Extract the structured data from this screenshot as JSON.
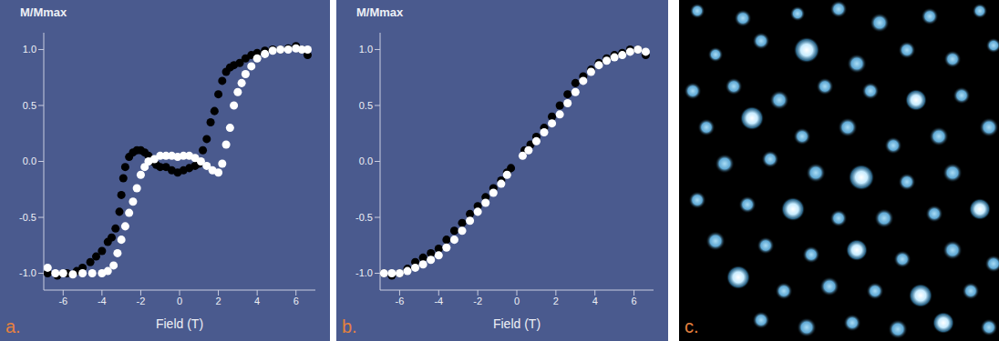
{
  "chart_data": [
    {
      "type": "scatter",
      "x_label": "Field (T)",
      "y_label": "M/Mmax",
      "annotations": [
        "a."
      ],
      "grid": false,
      "xlim": [
        -7,
        7
      ],
      "ylim": [
        -1.15,
        1.15
      ],
      "xticks": [
        -6,
        -4,
        -2,
        0,
        2,
        4,
        6
      ],
      "yticks": [
        {
          "value": -1,
          "label": "-1.0"
        },
        {
          "value": -0.5,
          "label": "-0.5"
        },
        {
          "value": 0,
          "label": "0.0"
        },
        {
          "value": 0.5,
          "label": "0.5"
        },
        {
          "value": 1,
          "label": "1.0"
        }
      ],
      "series": [
        {
          "color": "#000000",
          "x": [
            -6.8,
            -6.3,
            -5.8,
            -5.3,
            -5.0,
            -4.6,
            -4.3,
            -4.0,
            -3.7,
            -3.5,
            -3.3,
            -3.1,
            -3.0,
            -2.9,
            -2.8,
            -2.6,
            -2.4,
            -2.2,
            -2.0,
            -1.8,
            -1.6,
            -1.4,
            -1.2,
            -1.0,
            -0.7,
            -0.4,
            -0.1,
            0.2,
            0.5,
            0.8,
            1.0,
            1.2,
            1.4,
            1.6,
            1.8,
            2.0,
            2.2,
            2.4,
            2.6,
            2.8,
            3.1,
            3.4,
            3.7,
            4.0,
            4.4,
            4.8,
            5.2,
            5.6,
            6.0,
            6.3,
            6.6
          ],
          "values": [
            -1.0,
            -1.02,
            -1.0,
            -0.98,
            -0.95,
            -0.9,
            -0.85,
            -0.8,
            -0.72,
            -0.68,
            -0.6,
            -0.45,
            -0.3,
            -0.15,
            -0.05,
            0.04,
            0.08,
            0.1,
            0.1,
            0.08,
            0.05,
            0.0,
            -0.03,
            -0.05,
            -0.05,
            -0.08,
            -0.1,
            -0.08,
            -0.06,
            -0.04,
            -0.02,
            0.1,
            0.2,
            0.35,
            0.45,
            0.6,
            0.72,
            0.8,
            0.84,
            0.86,
            0.88,
            0.92,
            0.95,
            0.97,
            0.99,
            1.0,
            1.0,
            1.01,
            1.03,
            1.0,
            0.95
          ]
        },
        {
          "color": "#ffffff",
          "x": [
            -6.8,
            -6.4,
            -6.0,
            -5.5,
            -5.0,
            -4.5,
            -4.0,
            -3.7,
            -3.4,
            -3.2,
            -3.0,
            -2.8,
            -2.6,
            -2.4,
            -2.2,
            -2.0,
            -1.8,
            -1.6,
            -1.3,
            -1.0,
            -0.7,
            -0.4,
            -0.1,
            0.2,
            0.5,
            0.8,
            1.1,
            1.4,
            1.7,
            2.0,
            2.2,
            2.4,
            2.6,
            2.8,
            3.0,
            3.2,
            3.4,
            3.7,
            4.0,
            4.4,
            4.8,
            5.2,
            5.6,
            6.0,
            6.3,
            6.6
          ],
          "values": [
            -0.95,
            -1.0,
            -1.0,
            -1.01,
            -1.0,
            -1.0,
            -1.0,
            -0.98,
            -0.93,
            -0.82,
            -0.7,
            -0.58,
            -0.46,
            -0.36,
            -0.24,
            -0.12,
            -0.05,
            0.0,
            0.02,
            0.05,
            0.05,
            0.05,
            0.04,
            0.05,
            0.05,
            0.03,
            0.0,
            -0.04,
            -0.08,
            -0.1,
            -0.02,
            0.15,
            0.3,
            0.5,
            0.62,
            0.7,
            0.78,
            0.85,
            0.92,
            0.96,
            0.99,
            1.0,
            1.0,
            1.01,
            1.0,
            1.0
          ]
        }
      ]
    },
    {
      "type": "scatter",
      "x_label": "Field (T)",
      "y_label": "M/Mmax",
      "annotations": [
        "b."
      ],
      "grid": false,
      "xlim": [
        -7,
        7
      ],
      "ylim": [
        -1.15,
        1.15
      ],
      "xticks": [
        -6,
        -4,
        -2,
        0,
        2,
        4,
        6
      ],
      "yticks": [
        {
          "value": -1,
          "label": "-1.0"
        },
        {
          "value": -0.5,
          "label": "-0.5"
        },
        {
          "value": 0,
          "label": "0.0"
        },
        {
          "value": 0.5,
          "label": "0.5"
        },
        {
          "value": 1,
          "label": "1.0"
        }
      ],
      "series": [
        {
          "color": "#000000",
          "x": [
            -6.8,
            -6.4,
            -6.0,
            -5.6,
            -5.2,
            -4.8,
            -4.4,
            -4.0,
            -3.6,
            -3.2,
            -2.8,
            -2.4,
            -2.0,
            -1.6,
            -1.2,
            -0.8,
            -0.5,
            -0.3,
            0.4,
            0.7,
            1.0,
            1.4,
            1.8,
            2.2,
            2.6,
            3.0,
            3.4,
            3.8,
            4.2,
            4.6,
            5.0,
            5.4,
            5.8,
            6.2,
            6.6
          ],
          "values": [
            -1.0,
            -1.02,
            -1.0,
            -0.96,
            -0.9,
            -0.86,
            -0.82,
            -0.78,
            -0.7,
            -0.62,
            -0.55,
            -0.47,
            -0.4,
            -0.32,
            -0.24,
            -0.17,
            -0.1,
            -0.06,
            0.1,
            0.15,
            0.22,
            0.3,
            0.4,
            0.5,
            0.6,
            0.7,
            0.76,
            0.82,
            0.88,
            0.92,
            0.95,
            0.97,
            1.0,
            1.0,
            0.95
          ]
        },
        {
          "color": "#ffffff",
          "x": [
            -6.8,
            -6.4,
            -6.0,
            -5.6,
            -5.2,
            -4.8,
            -4.4,
            -4.0,
            -3.6,
            -3.2,
            -2.8,
            -2.4,
            -2.0,
            -1.6,
            -1.2,
            -0.8,
            -0.5,
            0.3,
            0.6,
            1.0,
            1.4,
            1.8,
            2.2,
            2.6,
            3.0,
            3.4,
            3.8,
            4.2,
            4.6,
            5.0,
            5.4,
            5.8,
            6.2,
            6.6
          ],
          "values": [
            -1.0,
            -1.0,
            -1.0,
            -0.98,
            -0.95,
            -0.92,
            -0.88,
            -0.84,
            -0.77,
            -0.7,
            -0.62,
            -0.53,
            -0.45,
            -0.37,
            -0.28,
            -0.2,
            -0.12,
            0.05,
            0.1,
            0.18,
            0.26,
            0.34,
            0.42,
            0.52,
            0.62,
            0.72,
            0.8,
            0.86,
            0.9,
            0.93,
            0.95,
            0.98,
            1.0,
            0.98
          ]
        }
      ]
    },
    {
      "type": "image",
      "annotations": [
        "c."
      ]
    }
  ]
}
